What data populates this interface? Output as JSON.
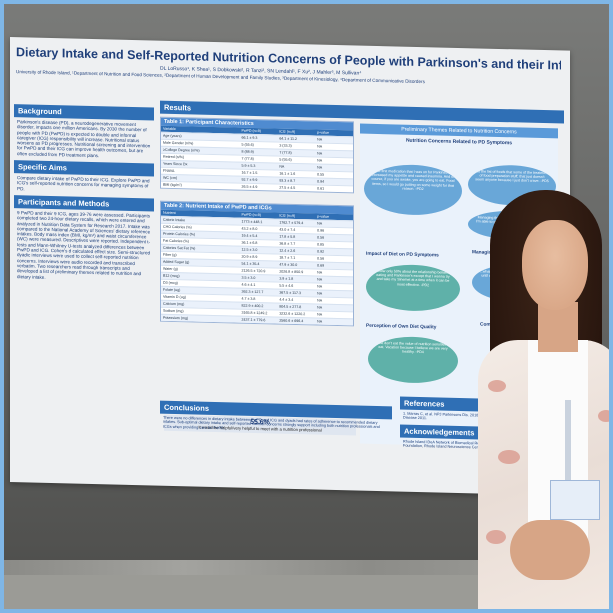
{
  "poster": {
    "title": "Dietary Intake and Self-Reported Nutrition Concerns of People with Parkinson's and their Informal Caregivers",
    "authors": "DL LoRusso¹, K Shea¹, S Dobkowski², R Tanzi², SN Lendahl¹, F Xu², J Mahler³, M Sullivan⁴",
    "affiliation": "University of Rhode Island, ¹Department of Nutrition and Food Sciences, ²Department of Human Development and Family Studies, ³Department of Kinesiology, ⁴Department of Communicative Disorders",
    "sections": {
      "background_title": "Background",
      "background_text": "Parkinson's disease (PD), a neurodegenerative movement disorder, impacts one million Americans. By 2030 the number of people with PD (PwPD) is expected to double and informal caregiver (ICG) responsibility will increase. Nutritional status worsens as PD progresses. Nutritional screening and intervention for PwPD and their ICG can improve health outcomes, but are often excluded from PD treatment plans.",
      "aims_title": "Specific Aims",
      "aims_text": "Compare dietary intake of PwPD to their ICG. Explore PwPD and ICG's self-reported nutrition concerns for managing symptoms of PD.",
      "participants_title": "Participants and Methods",
      "participants_text": "9 PwPD and their 9 ICG, ages 39-76 were assessed. Participants completed two 24-hour dietary recalls, which were entered and analyzed in Nutrition Data System for Research 2017. Intake was compared to the National Academy of Sciences' dietary reference intakes. Body mass index (BMI, kg/m²) and waist circumference (WC) were measured. Descriptives were reported. Independent t-tests and Mann-Whitney U-tests analyzed differences between PwPD and ICG. Cohen's d calculated effect size. Semi-structured dyadic interviews were used to collect self-reported nutrition concerns. Interviews were audio recorded and transcribed verbatim. Two researchers read through transcripts and developed a list of preliminary themes related to nutrition and dietary intake.",
      "results_title": "Results",
      "table1_title": "Table 1: Participant Characteristics",
      "table2_title": "Table 2: Nutrient Intake of PwPD and ICGs",
      "themes_title": "Preliminary Themes Related to Nutrition Concerns",
      "themes_sub1": "Nutrition Concerns Related to PD Symptoms",
      "themes_sub2": "Impact of Diet on PD Symptoms",
      "themes_sub3": "Managing Other Conditions",
      "themes_sub4": "Perception of Own Diet Quality",
      "themes_sub5": "Comp",
      "quote1": "The first medication that I was on for Parkinson's increased my appetite and caused insomnia. And of course, if you are awake, you are going to eat. Food items, so I would go putting on some weight for that reason. -PD2",
      "quote2": "So the list of foods that some of the treatment of food preparation stuff; that just doesn't seem anyone because I just don't crave. -PD5",
      "quote3": "Managing the tremor, there's times when I'm able to get sugar in things, as a pick up to the muscle. -PD3",
      "quote4": "I know only 50% about the relationship between eating and Parkinson's except that I wanna try and take my Sinemet at a time when it can be most effective. -PD2",
      "quote5": "...what you get me going on, I remember until a much more worked for a diet for that.",
      "quote6": "I just don't eat the value of nutrition sensitive to eat. Vacation because I believe we are very healthy. -PD4",
      "highlight_value": "55.6%",
      "highlight_text": "It would be helpful/very helpful to meet with a nutrition professional",
      "conclusions_title": "Conclusions",
      "conclusions_text": "There were no differences in dietary intake between PwPD and ICG and dyads had rates of adherence to recommended dietary intakes. Sub-optimal dietary intake and self-reported nutrition concerns strongly support including both nutrition professionals and ICGs when providing care for PwPD.",
      "references_title": "References",
      "references_text": "1. Marras C, et al. NPJ Parkinsons Dis. 2018;4:21. 2. Ahmed Rana, Journal of Parkinson's Disease 2011.",
      "ack_title": "Acknowledgements",
      "ack_text": "Rhode Island IDeA Network of Biomedical Research Excellence, Parkinson Disease Foundation, Rhode Island Neuroscience Center."
    },
    "table1": {
      "headers": [
        "Variable",
        "PwPD (n=9)",
        "ICG (n=9)",
        "p-value"
      ],
      "rows": [
        [
          "Age (years)",
          "66.1 ± 9.3",
          "64.1 ± 11.2",
          "NA"
        ],
        [
          "Male Gender (n/%)",
          "5 (55.6)",
          "3 (33.3)",
          "NA"
        ],
        [
          "≥College Degree (n/%)",
          "8 (88.9)",
          "7 (77.8)",
          "NA"
        ],
        [
          "Retired (n/%)",
          "7 (77.8)",
          "5 (55.6)",
          "NA"
        ],
        [
          "Years Since Dx",
          "5.9 ± 5.3",
          "NA",
          "NA"
        ],
        [
          "FNAVA",
          "16.7 ± 1.5",
          "16.1 ± 1.6",
          "0.55"
        ],
        [
          "WC (cm)",
          "92.7 ± 9.9",
          "93.3 ± 8.7",
          "0.94"
        ],
        [
          "BMI (kg/m²)",
          "26.5 ± 4.9",
          "27.5 ± 4.5",
          "0.61"
        ]
      ]
    },
    "table2": {
      "headers": [
        "Nutrient",
        "PwPD (n=9)",
        "ICG (n=9)",
        "p-value"
      ],
      "rows": [
        [
          "Calorie Intake",
          "1773 ± 448.1",
          "1762.7 ± 579.4",
          "NA"
        ],
        [
          "CHO Calories (%)",
          "43.2 ± 8.0",
          "43.0 ± 7.4",
          "0.96"
        ],
        [
          "Protein Calories (%)",
          "19.4 ± 5.4",
          "17.8 ± 5.8",
          "0.56"
        ],
        [
          "Fat Calories (%)",
          "36.1 ± 6.8",
          "36.8 ± 7.7",
          "0.85"
        ],
        [
          "Calories Sat Fat (%)",
          "12.5 ± 3.0",
          "12.4 ± 2.6",
          "0.92"
        ],
        [
          "Fiber (g)",
          "20.9 ± 8.9",
          "18.7 ± 7.1",
          "0.56"
        ],
        [
          "Added Sugar (g)",
          "54.1 ± 35.4",
          "47.9 ± 30.0",
          "0.69"
        ],
        [
          "Water (g)",
          "2126.5 ± 720.9",
          "2026.8 ± 850.9",
          "NA"
        ],
        [
          "B12 (mcg)",
          "3.5 ± 3.0",
          "3.9 ± 1.8",
          "NA"
        ],
        [
          "D3 (mcg)",
          "4.6 ± 4.1",
          "5.5 ± 4.6",
          "NA"
        ],
        [
          "Folate (ug)",
          "392.3 ± 127.7",
          "367.5 ± 117.3",
          "NA"
        ],
        [
          "Vitamin D (ug)",
          "4.7 ± 3.8",
          "4.4 ± 3.4",
          "NA"
        ],
        [
          "Calcium (mg)",
          "822.9 ± 400.2",
          "804.5 ± 277.8",
          "NA"
        ],
        [
          "Sodium (mg)",
          "3165.8 ± 1249.2",
          "3232.6 ± 1220.2",
          "NA"
        ],
        [
          "Potassium (mg)",
          "2437.1 ± 779.6",
          "2560.6 ± 696.4",
          "NA"
        ]
      ]
    }
  }
}
